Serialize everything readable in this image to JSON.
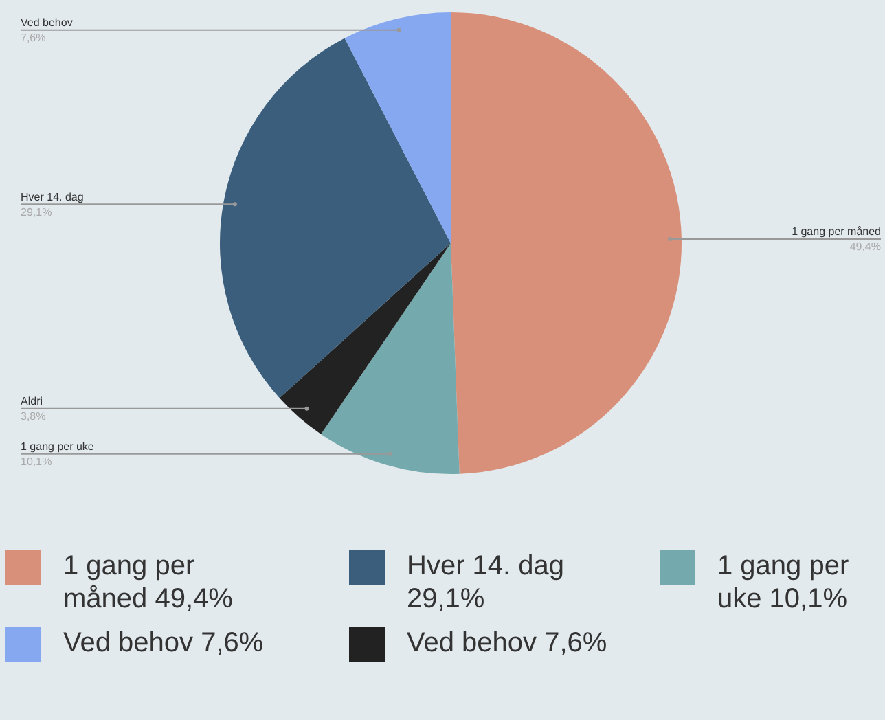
{
  "chart_data": {
    "type": "pie",
    "categories": [
      "1 gang per måned",
      "1 gang per uke",
      "Aldri",
      "Hver 14. dag",
      "Ved behov"
    ],
    "values": [
      49.4,
      10.1,
      3.8,
      29.1,
      7.6
    ],
    "colors": [
      "#d9907a",
      "#74aaad",
      "#222222",
      "#3a5e7c",
      "#86a8f0"
    ],
    "value_labels": [
      "49,4%",
      "10,1%",
      "3,8%",
      "29,1%",
      "7,6%"
    ],
    "annotations": [
      "1 gang per måned 49,4%",
      "Hver 14. dag 29,1%",
      "1 gang per uke 10,1%",
      "Ved behov 7,6%",
      "Ved behov 7,6%"
    ]
  }
}
